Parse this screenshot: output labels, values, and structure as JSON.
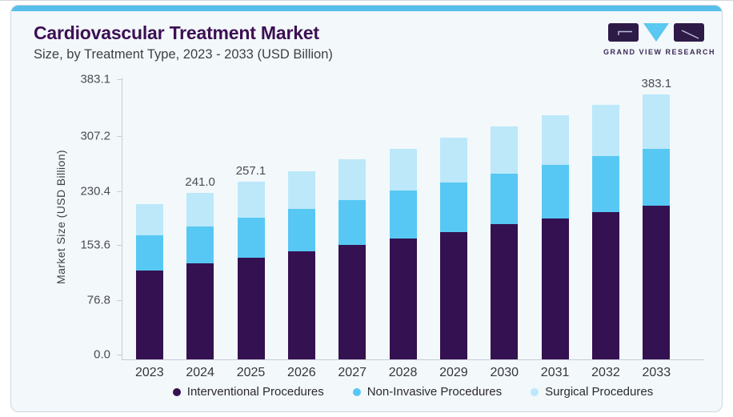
{
  "page": {
    "title": "Cardiovascular Treatment Market",
    "subtitle": "Size, by Treatment Type, 2023 - 2033 (USD Billion)",
    "logo_text": "GRAND VIEW RESEARCH"
  },
  "colors": {
    "accent_strip": "#57bfe9",
    "card_background": "#f3f8fb",
    "title_purple": "#3c1053",
    "interventional": "#341150",
    "non_invasive": "#57c8f3",
    "surgical": "#bce8fa",
    "logo_purple": "#2e1a47",
    "logo_triangle": "#5ac8f0"
  },
  "chart_data": {
    "type": "bar",
    "stacked": true,
    "title": "Cardiovascular Treatment Market",
    "subtitle": "Size, by Treatment Type, 2023 - 2033 (USD Billion)",
    "xlabel": "",
    "ylabel": "Market Size (USD Billion)",
    "categories": [
      "2023",
      "2024",
      "2025",
      "2026",
      "2027",
      "2028",
      "2029",
      "2030",
      "2031",
      "2032",
      "2033"
    ],
    "series": [
      {
        "name": "Interventional Procedures",
        "color": "#341150",
        "values": [
          128.2,
          138.4,
          146.9,
          156.0,
          165.7,
          174.5,
          184.2,
          195.0,
          203.4,
          213.1,
          221.9
        ]
      },
      {
        "name": "Non-Invasive Procedures",
        "color": "#57c8f3",
        "values": [
          51.4,
          54.1,
          57.5,
          61.0,
          64.8,
          69.4,
          72.1,
          74.0,
          78.0,
          81.0,
          83.0
        ]
      },
      {
        "name": "Surgical Procedures",
        "color": "#bce8fa",
        "values": [
          45.1,
          48.5,
          52.7,
          55.1,
          59.0,
          60.6,
          64.8,
          68.3,
          71.3,
          74.1,
          78.2
        ]
      }
    ],
    "totals": [
      224.7,
      241.0,
      257.1,
      272.1,
      289.5,
      304.5,
      321.1,
      337.3,
      352.7,
      368.2,
      383.1
    ],
    "bar_labels": [
      {
        "category": "2024",
        "text": "241.0"
      },
      {
        "category": "2025",
        "text": "257.1"
      },
      {
        "category": "2033",
        "text": "383.1"
      }
    ],
    "yticks": [
      "0.0",
      "76.8",
      "153.6",
      "230.4",
      "307.2",
      "383.1"
    ],
    "ylim": [
      0,
      383.1
    ],
    "grid": false,
    "legend_position": "bottom"
  }
}
